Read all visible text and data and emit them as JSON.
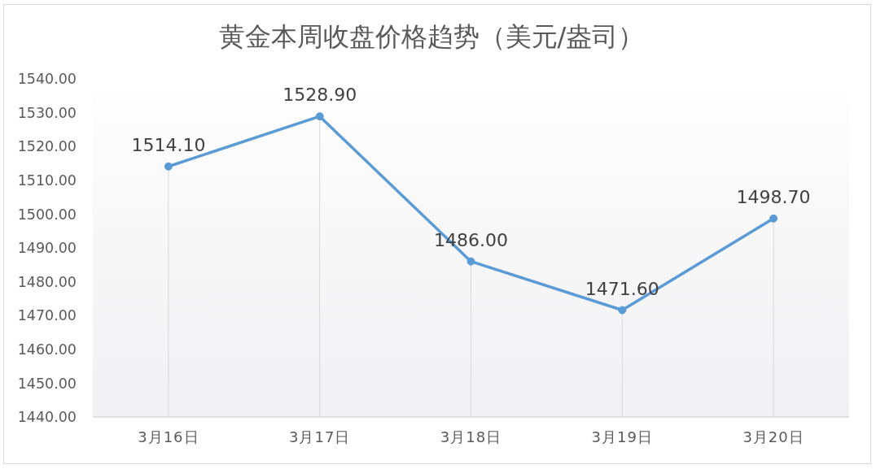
{
  "chart_data": {
    "type": "line",
    "title": "黄金本周收盘价格趋势（美元/盎司）",
    "categories": [
      "3月16日",
      "3月17日",
      "3月18日",
      "3月19日",
      "3月20日"
    ],
    "values": [
      1514.1,
      1528.9,
      1486,
      1471.6,
      1498.7
    ],
    "color": "#5b9bd5",
    "value_labels": [
      "1514.10",
      "1528.90",
      "1486.00",
      "1471.60",
      "1498.70"
    ],
    "ylim": [
      1440,
      1540
    ],
    "yticks": [
      {
        "value": 1440,
        "label": "1440.00"
      },
      {
        "value": 1450,
        "label": "1450.00"
      },
      {
        "value": 1460,
        "label": "1460.00"
      },
      {
        "value": 1470,
        "label": "1470.00"
      },
      {
        "value": 1480,
        "label": "1480.00"
      },
      {
        "value": 1490,
        "label": "1490.00"
      },
      {
        "value": 1500,
        "label": "1500.00"
      },
      {
        "value": 1510,
        "label": "1510.00"
      },
      {
        "value": 1520,
        "label": "1520.00"
      },
      {
        "value": 1530,
        "label": "1530.00"
      },
      {
        "value": 1540,
        "label": "1540.00"
      }
    ],
    "grid": "x",
    "marker": "circle",
    "line_style": "solid"
  }
}
